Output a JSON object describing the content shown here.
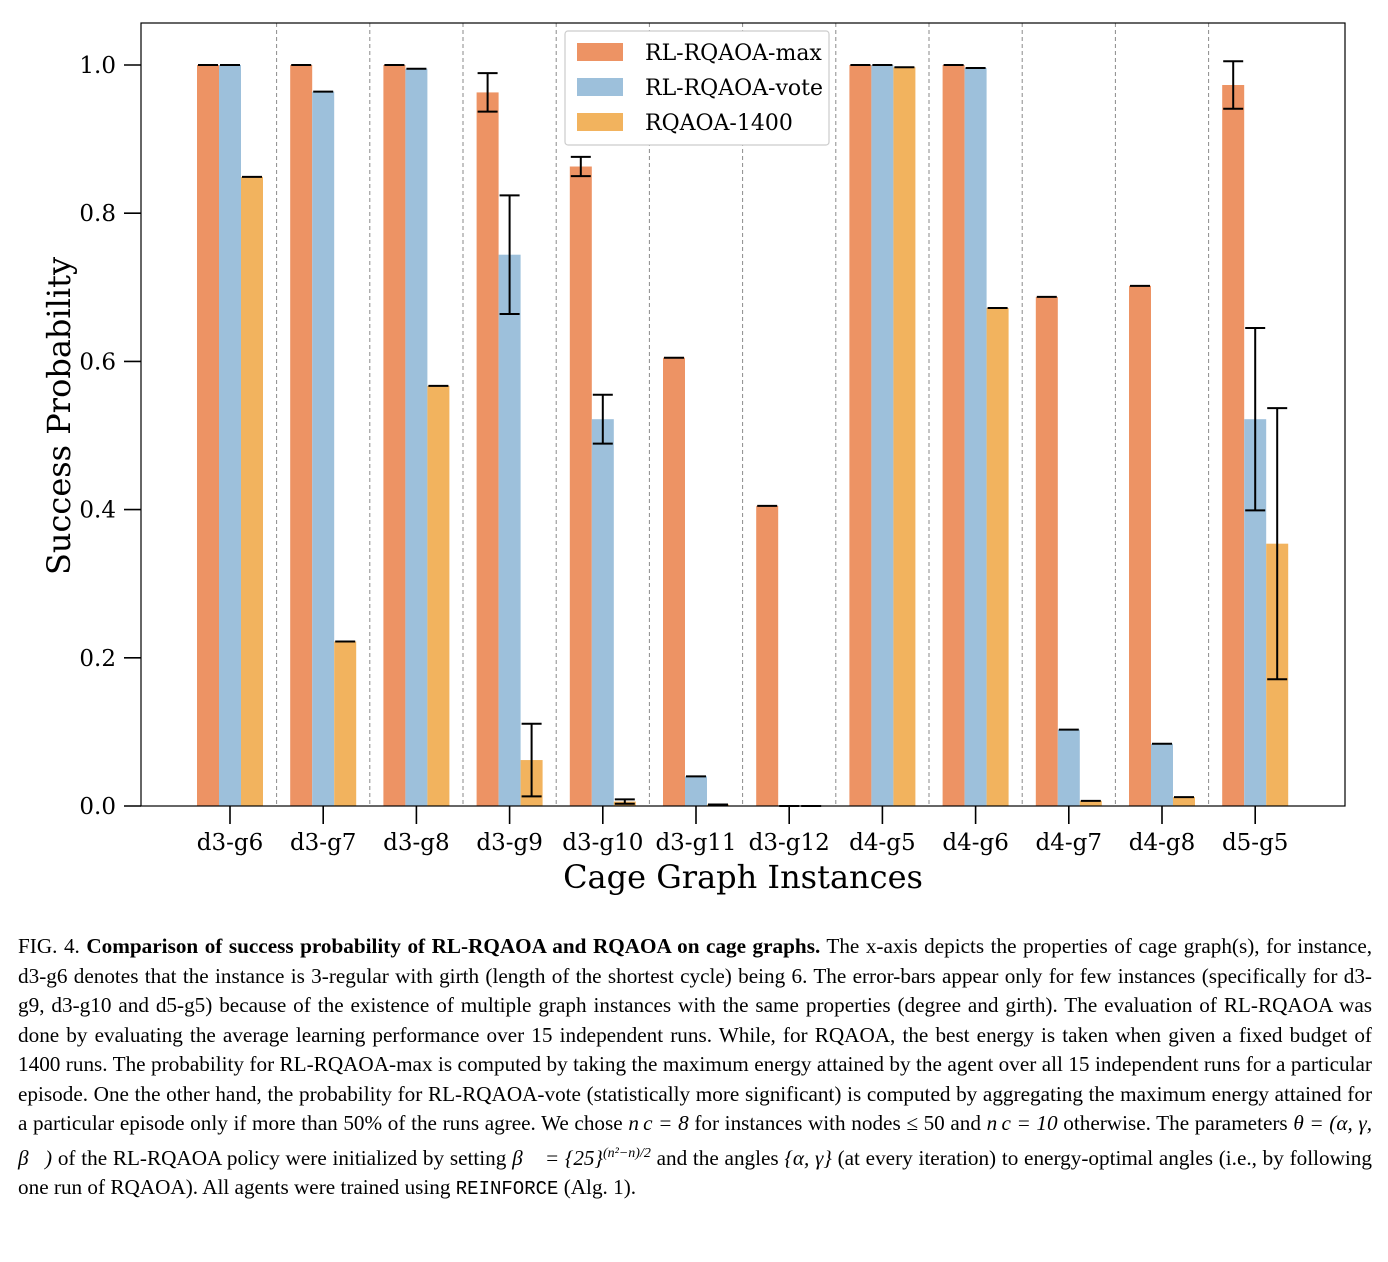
{
  "chart_data": {
    "type": "bar",
    "title": "",
    "xlabel": "Cage Graph Instances",
    "ylabel": "Success Probability",
    "ylim": [
      0,
      1.05
    ],
    "yticks": [
      "0.0",
      "0.2",
      "0.4",
      "0.6",
      "0.8",
      "1.0"
    ],
    "categories": [
      "d3-g6",
      "d3-g7",
      "d3-g8",
      "d3-g9",
      "d3-g10",
      "d3-g11",
      "d3-g12",
      "d4-g5",
      "d4-g6",
      "d4-g7",
      "d4-g8",
      "d5-g5"
    ],
    "legend_position": "top-center",
    "series": [
      {
        "name": "RL-RQAOA-max",
        "color": "#ed9364",
        "values": [
          1.0,
          1.0,
          1.0,
          0.963,
          0.863,
          0.605,
          0.405,
          1.0,
          1.0,
          0.687,
          0.702,
          0.973
        ],
        "errors": [
          0,
          0,
          0,
          0.026,
          0.013,
          0,
          0,
          0,
          0,
          0,
          0,
          0.032
        ]
      },
      {
        "name": "RL-RQAOA-vote",
        "color": "#9dc0db",
        "values": [
          1.0,
          0.964,
          0.995,
          0.744,
          0.522,
          0.04,
          0.0,
          1.0,
          0.996,
          0.103,
          0.084,
          0.522
        ],
        "errors": [
          0,
          0,
          0,
          0.08,
          0.033,
          0,
          0,
          0,
          0,
          0,
          0,
          0.123
        ]
      },
      {
        "name": "RQAOA-1400",
        "color": "#f2b35e",
        "values": [
          0.849,
          0.222,
          0.567,
          0.062,
          0.006,
          0.002,
          0.0,
          0.997,
          0.672,
          0.007,
          0.012,
          0.354
        ],
        "errors": [
          0,
          0,
          0,
          0.049,
          0.003,
          0,
          0,
          0,
          0,
          0,
          0,
          0.183
        ]
      }
    ]
  },
  "caption": {
    "fig_label": "FIG. 4.",
    "bold_title": "Comparison of success probability of RL-RQAOA and RQAOA on cage graphs.",
    "text1": "The x-axis depicts the properties of cage graph(s), for instance, d3-g6 denotes that the instance is 3-regular with girth (length of the shortest cycle) being 6. The error-bars appear only for few instances (specifically for d3-g9, d3-g10 and d5-g5) because of the existence of multiple graph instances with the same properties (degree and girth). The evaluation of RL-RQAOA was done by evaluating the average learning performance over 15 independent runs. While, for RQAOA, the best energy is taken when given a fixed budget of 1400 runs. The probability for RL-RQAOA-max is computed by taking the maximum energy attained by the agent over all 15 independent runs for a particular episode. One the other hand, the probability for RL-RQAOA-vote (statistically more significant) is computed by aggregating the maximum energy attained for a particular episode only if more than 50% of the runs agree. We chose",
    "math_nc8": "n c = 8",
    "text2": "for instances with nodes ≤ 50 and",
    "math_nc10": "n c = 10",
    "text3": "otherwise. The parameters",
    "math_theta": "θ = (α, γ, β⃗)",
    "text4": "of the RL-RQAOA policy were initialized by setting",
    "math_beta": "β⃗ = {25}",
    "math_beta_sup": "(n²−n)/2",
    "text5": "and the angles",
    "math_angles": "{α, γ}",
    "text6": "(at every iteration) to energy-optimal angles (i.e., by following one run of RQAOA). All agents were trained using",
    "reinforce": "REINFORCE",
    "text7": "(Alg. 1)."
  }
}
